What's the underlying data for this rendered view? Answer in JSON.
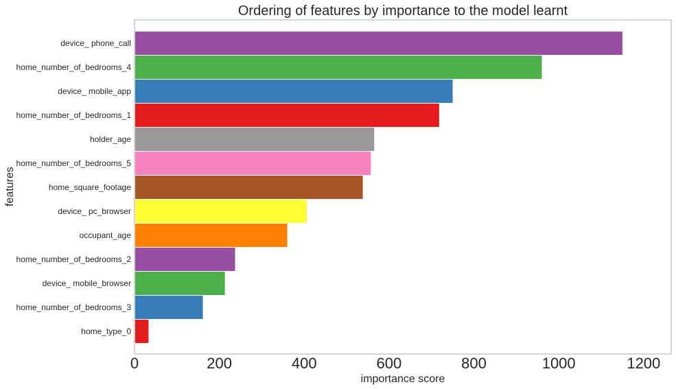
{
  "chart_data": {
    "type": "bar",
    "orientation": "horizontal",
    "title": "Ordering of features by importance to the model learnt",
    "xlabel": "importance score",
    "ylabel": "features",
    "categories": [
      "device_ phone_call",
      "home_number_of_bedrooms_4",
      "device_ mobile_app",
      "home_number_of_bedrooms_1",
      "holder_age",
      "home_number_of_bedrooms_5",
      "home_square_footage",
      "device_ pc_browser",
      "occupant_age",
      "home_number_of_bedrooms_2",
      "device_ mobile_browser",
      "home_number_of_bedrooms_3",
      "home_type_0"
    ],
    "values": [
      1150,
      960,
      750,
      718,
      565,
      557,
      538,
      406,
      360,
      237,
      213,
      161,
      33
    ],
    "colors": [
      "#984ea3",
      "#4daf4a",
      "#377eb8",
      "#e41a1c",
      "#999999",
      "#f781bf",
      "#a65628",
      "#ffff33",
      "#ff7f00",
      "#984ea3",
      "#4daf4a",
      "#377eb8",
      "#e41a1c"
    ],
    "xlim": [
      0,
      1265
    ],
    "xticks": [
      0,
      200,
      400,
      600,
      800,
      1000,
      1200
    ],
    "grid": false,
    "legend": "none"
  }
}
